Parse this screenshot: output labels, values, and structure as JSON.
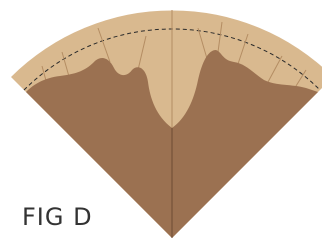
{
  "label": "FIG D"
}
